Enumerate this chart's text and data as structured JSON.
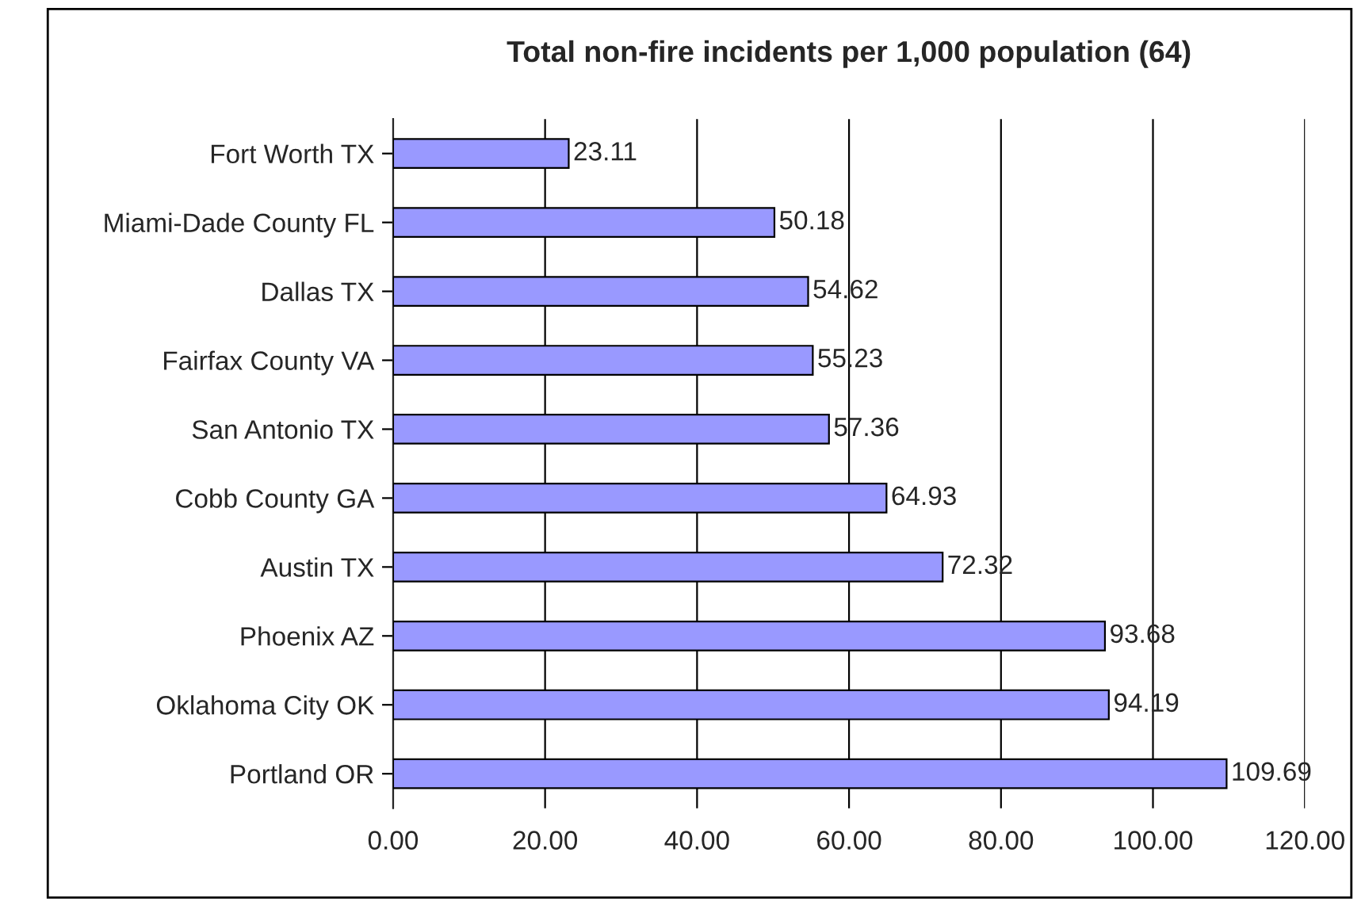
{
  "chart_data": {
    "type": "bar",
    "orientation": "horizontal",
    "title": "Total non-fire incidents per 1,000 population (64)",
    "categories": [
      "Fort Worth TX",
      "Miami-Dade County FL",
      "Dallas TX",
      "Fairfax County VA",
      "San Antonio TX",
      "Cobb County GA",
      "Austin TX",
      "Phoenix AZ",
      "Oklahoma City OK",
      "Portland OR"
    ],
    "values": [
      23.11,
      50.18,
      54.62,
      55.23,
      57.36,
      64.93,
      72.32,
      93.68,
      94.19,
      109.69
    ],
    "color": "#9999ff",
    "xlim": [
      0,
      120
    ],
    "xticks": [
      {
        "value": 0,
        "label": "0.00"
      },
      {
        "value": 20,
        "label": "20.00"
      },
      {
        "value": 40,
        "label": "40.00"
      },
      {
        "value": 60,
        "label": "60.00"
      },
      {
        "value": 80,
        "label": "80.00"
      },
      {
        "value": 100,
        "label": "100.00"
      },
      {
        "value": 120,
        "label": "120.00"
      }
    ],
    "grid": "x",
    "data_labels": true
  }
}
